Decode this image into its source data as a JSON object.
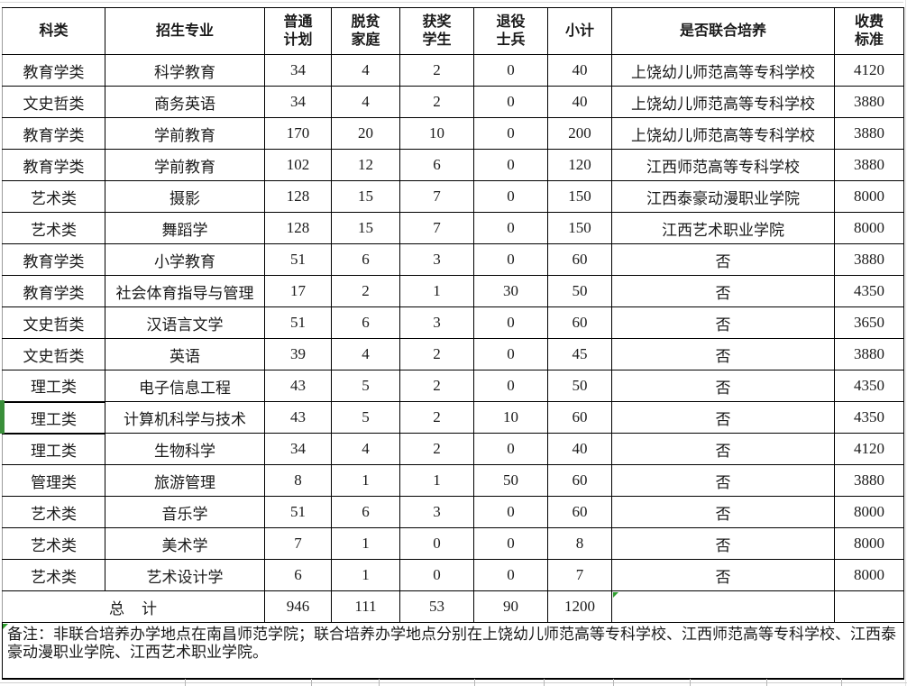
{
  "app": {
    "view": "spreadsheet-table"
  },
  "colors": {
    "border": "#000000",
    "grid_light": "#cccccc",
    "grid_stub": "#b5b5b5",
    "selection_green": "#3a8f3a",
    "marker_green": "#2f9e2f"
  },
  "table": {
    "columns": [
      {
        "key": "category",
        "label": "科类"
      },
      {
        "key": "major",
        "label": "招生专业"
      },
      {
        "key": "regular",
        "label": "普通\n计划"
      },
      {
        "key": "poverty",
        "label": "脱贫\n家庭"
      },
      {
        "key": "award",
        "label": "获奖\n学生"
      },
      {
        "key": "veteran",
        "label": "退役\n士兵"
      },
      {
        "key": "subtotal",
        "label": "小计"
      },
      {
        "key": "joint",
        "label": "是否联合培养"
      },
      {
        "key": "fee",
        "label": "收费\n标准"
      }
    ],
    "rows": [
      [
        "教育学类",
        "科学教育",
        "34",
        "4",
        "2",
        "0",
        "40",
        "上饶幼儿师范高等专科学校",
        "4120"
      ],
      [
        "文史哲类",
        "商务英语",
        "34",
        "4",
        "2",
        "0",
        "40",
        "上饶幼儿师范高等专科学校",
        "3880"
      ],
      [
        "教育学类",
        "学前教育",
        "170",
        "20",
        "10",
        "0",
        "200",
        "上饶幼儿师范高等专科学校",
        "3880"
      ],
      [
        "教育学类",
        "学前教育",
        "102",
        "12",
        "6",
        "0",
        "120",
        "江西师范高等专科学校",
        "3880"
      ],
      [
        "艺术类",
        "摄影",
        "128",
        "15",
        "7",
        "0",
        "150",
        "江西泰豪动漫职业学院",
        "8000"
      ],
      [
        "艺术类",
        "舞蹈学",
        "128",
        "15",
        "7",
        "0",
        "150",
        "江西艺术职业学院",
        "8000"
      ],
      [
        "教育学类",
        "小学教育",
        "51",
        "6",
        "3",
        "0",
        "60",
        "否",
        "3880"
      ],
      [
        "教育学类",
        "社会体育指导与管理",
        "17",
        "2",
        "1",
        "30",
        "50",
        "否",
        "4350"
      ],
      [
        "文史哲类",
        "汉语言文学",
        "51",
        "6",
        "3",
        "0",
        "60",
        "否",
        "3650"
      ],
      [
        "文史哲类",
        "英语",
        "39",
        "4",
        "2",
        "0",
        "45",
        "否",
        "3880"
      ],
      [
        "理工类",
        "电子信息工程",
        "43",
        "5",
        "2",
        "0",
        "50",
        "否",
        "4350"
      ],
      [
        "理工类",
        "计算机科学与技术",
        "43",
        "5",
        "2",
        "10",
        "60",
        "否",
        "4350"
      ],
      [
        "理工类",
        "生物科学",
        "34",
        "4",
        "2",
        "0",
        "40",
        "否",
        "4120"
      ],
      [
        "管理类",
        "旅游管理",
        "8",
        "1",
        "1",
        "50",
        "60",
        "否",
        "3880"
      ],
      [
        "艺术类",
        "音乐学",
        "51",
        "6",
        "3",
        "0",
        "60",
        "否",
        "8000"
      ],
      [
        "艺术类",
        "美术学",
        "7",
        "1",
        "0",
        "0",
        "8",
        "否",
        "8000"
      ],
      [
        "艺术类",
        "艺术设计学",
        "6",
        "1",
        "0",
        "0",
        "7",
        "否",
        "8000"
      ]
    ],
    "selected_row_index": 11,
    "total": {
      "label": "总　计",
      "regular": "946",
      "poverty": "111",
      "award": "53",
      "veteran": "90",
      "subtotal": "1200",
      "joint": "",
      "fee": ""
    },
    "note": "备注：非联合培养办学地点在南昌师范学院；联合培养办学地点分别在上饶幼儿师范高等专科学校、江西师范高等专科学校、江西泰豪动漫职业学院、江西艺术职业学院。"
  }
}
